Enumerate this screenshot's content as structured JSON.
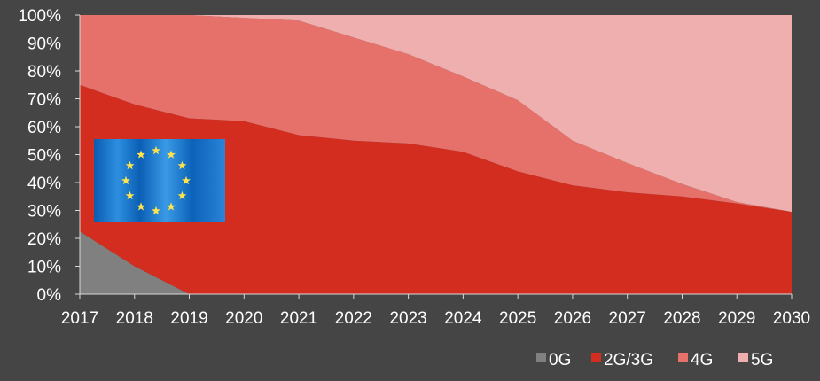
{
  "chart_data": {
    "type": "area",
    "stacked": true,
    "percent": true,
    "title": "",
    "xlabel": "",
    "ylabel": "",
    "x": [
      2017,
      2018,
      2019,
      2020,
      2021,
      2022,
      2023,
      2024,
      2025,
      2026,
      2027,
      2028,
      2029,
      2030
    ],
    "xticks": [
      "2017",
      "2018",
      "2019",
      "2020",
      "2021",
      "2022",
      "2023",
      "2024",
      "2025",
      "2026",
      "2027",
      "2028",
      "2029",
      "2030"
    ],
    "ylim": [
      0,
      100
    ],
    "yticks": [
      "0%",
      "10%",
      "20%",
      "30%",
      "40%",
      "50%",
      "60%",
      "70%",
      "80%",
      "90%",
      "100%"
    ],
    "legend_position": "bottom-right",
    "grid": false,
    "series": [
      {
        "name": "0G",
        "color": "#808080",
        "values": [
          22.5,
          10,
          0,
          0,
          0,
          0,
          0,
          0,
          0,
          0,
          0,
          0,
          0,
          0
        ]
      },
      {
        "name": "2G/3G",
        "color": "#d22d1e",
        "values": [
          52.5,
          58,
          63,
          62,
          57,
          55,
          54,
          51,
          44,
          39,
          36.5,
          35,
          32.5,
          29.5
        ]
      },
      {
        "name": "4G",
        "color": "#e5716a",
        "values": [
          25,
          32,
          37,
          37,
          41,
          37,
          32,
          27,
          25.5,
          16,
          10.5,
          4.5,
          0.5,
          0
        ]
      },
      {
        "name": "5G",
        "color": "#efafae",
        "values": [
          0,
          0,
          0,
          1,
          2,
          8,
          14,
          22,
          30.5,
          45,
          53,
          60.5,
          67,
          70.5
        ]
      }
    ],
    "flag": {
      "icon": "eu-flag-icon"
    }
  }
}
